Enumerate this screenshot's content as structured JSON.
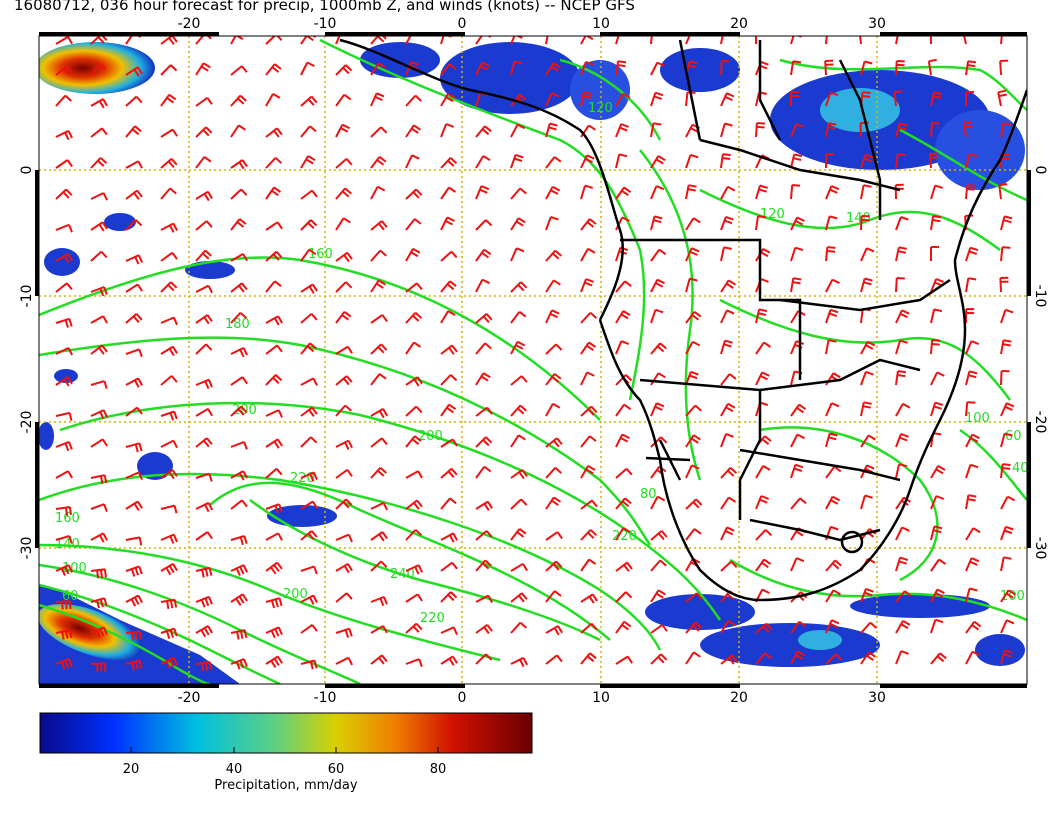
{
  "title": "16080712, 036 hour forecast for precip, 1000mb Z, and winds (knots) -- NCEP GFS",
  "map": {
    "lon_ticks": [
      "-20",
      "-10",
      "0",
      "10",
      "20",
      "30"
    ],
    "lat_ticks": [
      "0",
      "-10",
      "-20",
      "-30"
    ],
    "contour_labels": [
      "160",
      "180",
      "200",
      "200",
      "220",
      "220",
      "240",
      "200",
      "220",
      "160",
      "140",
      "100",
      "60",
      "120",
      "140",
      "80",
      "120",
      "100",
      "60",
      "40",
      "100"
    ],
    "colors": {
      "contour": "#22dd22",
      "wind_barb": "#ee1111",
      "coastline": "#000000",
      "grid": "#d4b400",
      "precip_low": "#0a1a9a",
      "precip_high": "#7a0000"
    }
  },
  "colorbar": {
    "labels": [
      "20",
      "40",
      "60",
      "80"
    ],
    "title": "Precipitation, mm/day"
  }
}
